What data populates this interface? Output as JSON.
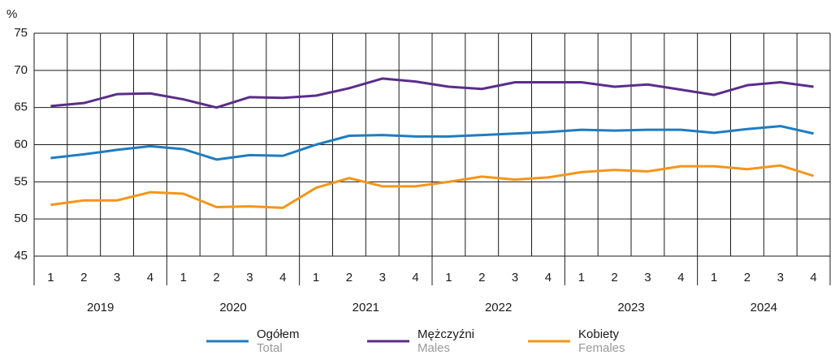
{
  "chart_data": {
    "type": "line",
    "y_label": "%",
    "categories": [
      "1",
      "2",
      "3",
      "4",
      "1",
      "2",
      "3",
      "4",
      "1",
      "2",
      "3",
      "4",
      "1",
      "2",
      "3",
      "4",
      "1",
      "2",
      "3",
      "4",
      "1",
      "2",
      "3",
      "4"
    ],
    "years": [
      "2019",
      "2020",
      "2021",
      "2022",
      "2023",
      "2024"
    ],
    "ylim": [
      45,
      75
    ],
    "yticks": [
      45,
      50,
      55,
      60,
      65,
      70,
      75
    ],
    "grid": true,
    "series": [
      {
        "name": "Ogółem",
        "name_en": "Total",
        "color": "#1f7cc1",
        "values": [
          58.2,
          58.7,
          59.3,
          59.8,
          59.4,
          58.0,
          58.6,
          58.5,
          60.0,
          61.2,
          61.3,
          61.1,
          61.1,
          61.3,
          61.5,
          61.7,
          62.0,
          61.9,
          62.0,
          62.0,
          61.6,
          62.1,
          62.5,
          61.5
        ]
      },
      {
        "name": "Mężczyźni",
        "name_en": "Males",
        "color": "#5a2d8a",
        "values": [
          65.2,
          65.6,
          66.8,
          66.9,
          66.1,
          65.0,
          66.4,
          66.3,
          66.6,
          67.6,
          68.9,
          68.5,
          67.8,
          67.5,
          68.4,
          68.4,
          68.4,
          67.8,
          68.1,
          67.4,
          66.7,
          68.0,
          68.4,
          67.8
        ]
      },
      {
        "name": "Kobiety",
        "name_en": "Females",
        "color": "#f3961a",
        "values": [
          51.9,
          52.5,
          52.5,
          53.6,
          53.4,
          51.6,
          51.7,
          51.5,
          54.2,
          55.5,
          54.4,
          54.4,
          55.0,
          55.7,
          55.3,
          55.6,
          56.3,
          56.6,
          56.4,
          57.1,
          57.1,
          56.7,
          57.2,
          55.8
        ]
      }
    ]
  }
}
